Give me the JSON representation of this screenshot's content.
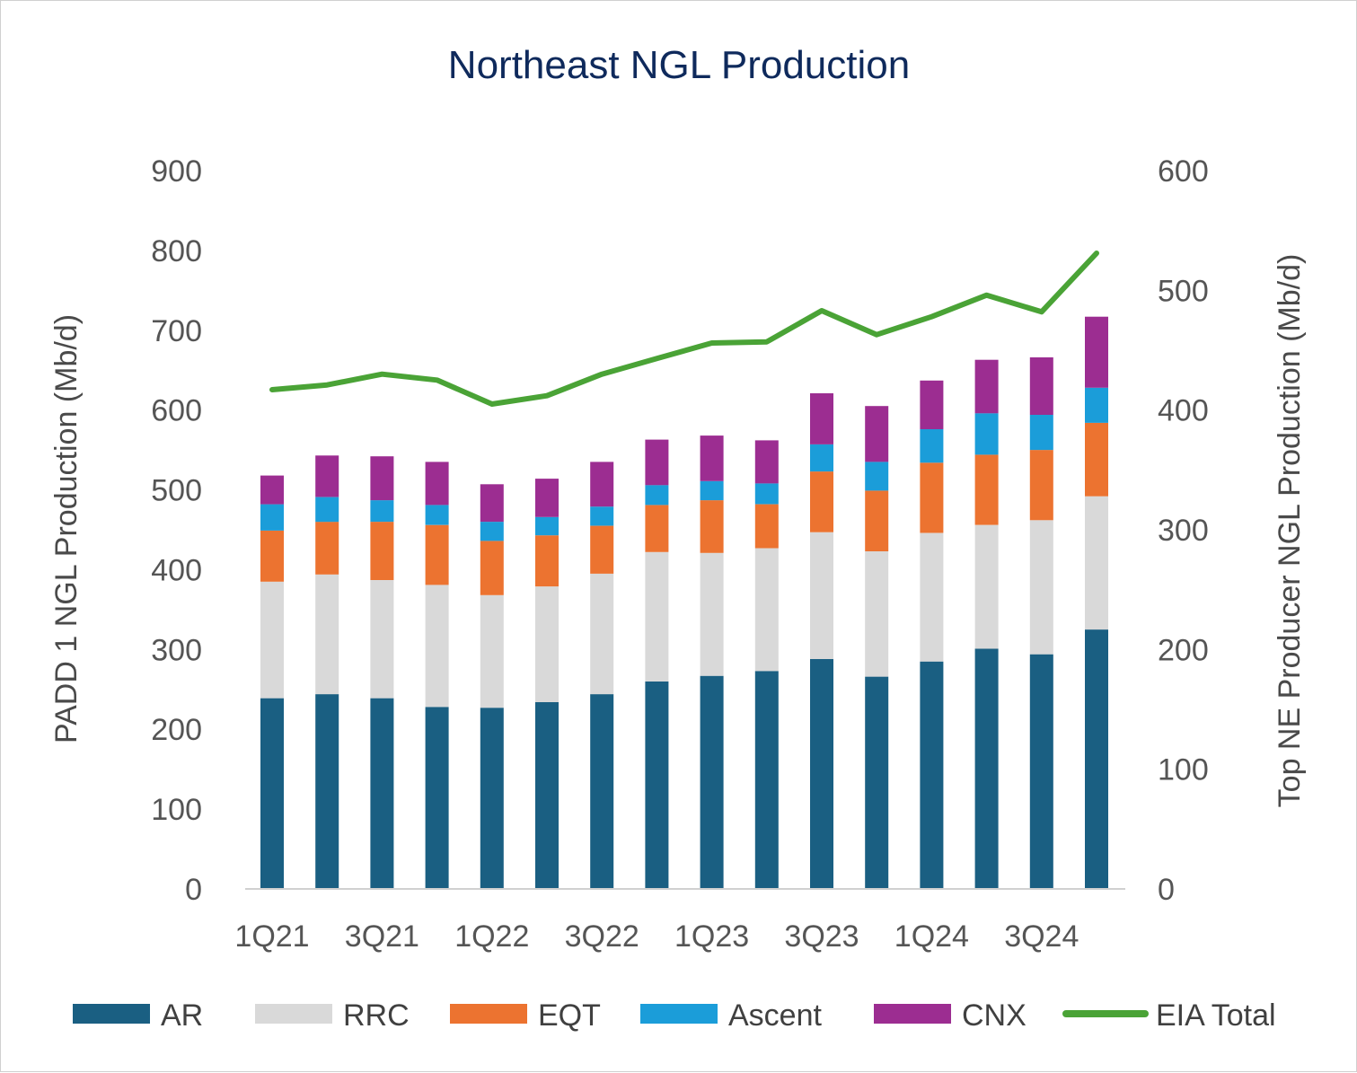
{
  "chart_data": {
    "type": "bar",
    "stacked": true,
    "title": "Northeast NGL Production",
    "xlabel": "",
    "ylabel": "PADD 1 NGL Production (Mb/d)",
    "y2label": "Top NE Producer NGL Production (Mb/d)",
    "ylim": [
      0,
      900
    ],
    "y2lim": [
      0,
      600
    ],
    "yticks": [
      "0",
      "100",
      "200",
      "300",
      "400",
      "500",
      "600",
      "700",
      "800",
      "900"
    ],
    "y2ticks": [
      "0",
      "100",
      "200",
      "300",
      "400",
      "500",
      "600"
    ],
    "categories": [
      "1Q21",
      "2Q21",
      "3Q21",
      "4Q21",
      "1Q22",
      "2Q22",
      "3Q22",
      "4Q22",
      "1Q23",
      "2Q23",
      "3Q23",
      "4Q23",
      "1Q24",
      "2Q24",
      "3Q24",
      "4Q24"
    ],
    "x_tick_labels": [
      "1Q21",
      "3Q21",
      "1Q22",
      "3Q22",
      "1Q23",
      "3Q23",
      "1Q24",
      "3Q24"
    ],
    "series": [
      {
        "name": "AR",
        "color": "#1a5f82",
        "axis": "left",
        "values": [
          239,
          244,
          239,
          228,
          227,
          234,
          244,
          260,
          267,
          273,
          288,
          266,
          285,
          301,
          294,
          325
        ]
      },
      {
        "name": "RRC",
        "color": "#d9d9d9",
        "axis": "left",
        "values": [
          146,
          150,
          148,
          153,
          141,
          145,
          151,
          162,
          154,
          154,
          159,
          157,
          161,
          155,
          168,
          167
        ]
      },
      {
        "name": "EQT",
        "color": "#ec7330",
        "axis": "left",
        "values": [
          64,
          66,
          73,
          75,
          68,
          64,
          60,
          59,
          66,
          55,
          76,
          76,
          88,
          88,
          88,
          92
        ]
      },
      {
        "name": "Ascent",
        "color": "#1b9dd9",
        "axis": "left",
        "values": [
          33,
          31,
          27,
          25,
          24,
          23,
          24,
          25,
          24,
          26,
          34,
          36,
          42,
          52,
          44,
          44
        ]
      },
      {
        "name": "CNX",
        "color": "#9c2d91",
        "axis": "left",
        "values": [
          36,
          52,
          55,
          54,
          47,
          48,
          56,
          57,
          57,
          54,
          64,
          70,
          61,
          67,
          72,
          89
        ]
      },
      {
        "name": "EIA Total",
        "color": "#4aa336",
        "axis": "right",
        "type": "line",
        "values": [
          417,
          421,
          430,
          425,
          405,
          412,
          430,
          443,
          456,
          457,
          483,
          463,
          478,
          496,
          482,
          531
        ]
      }
    ],
    "legend_position": "bottom",
    "grid": false
  }
}
